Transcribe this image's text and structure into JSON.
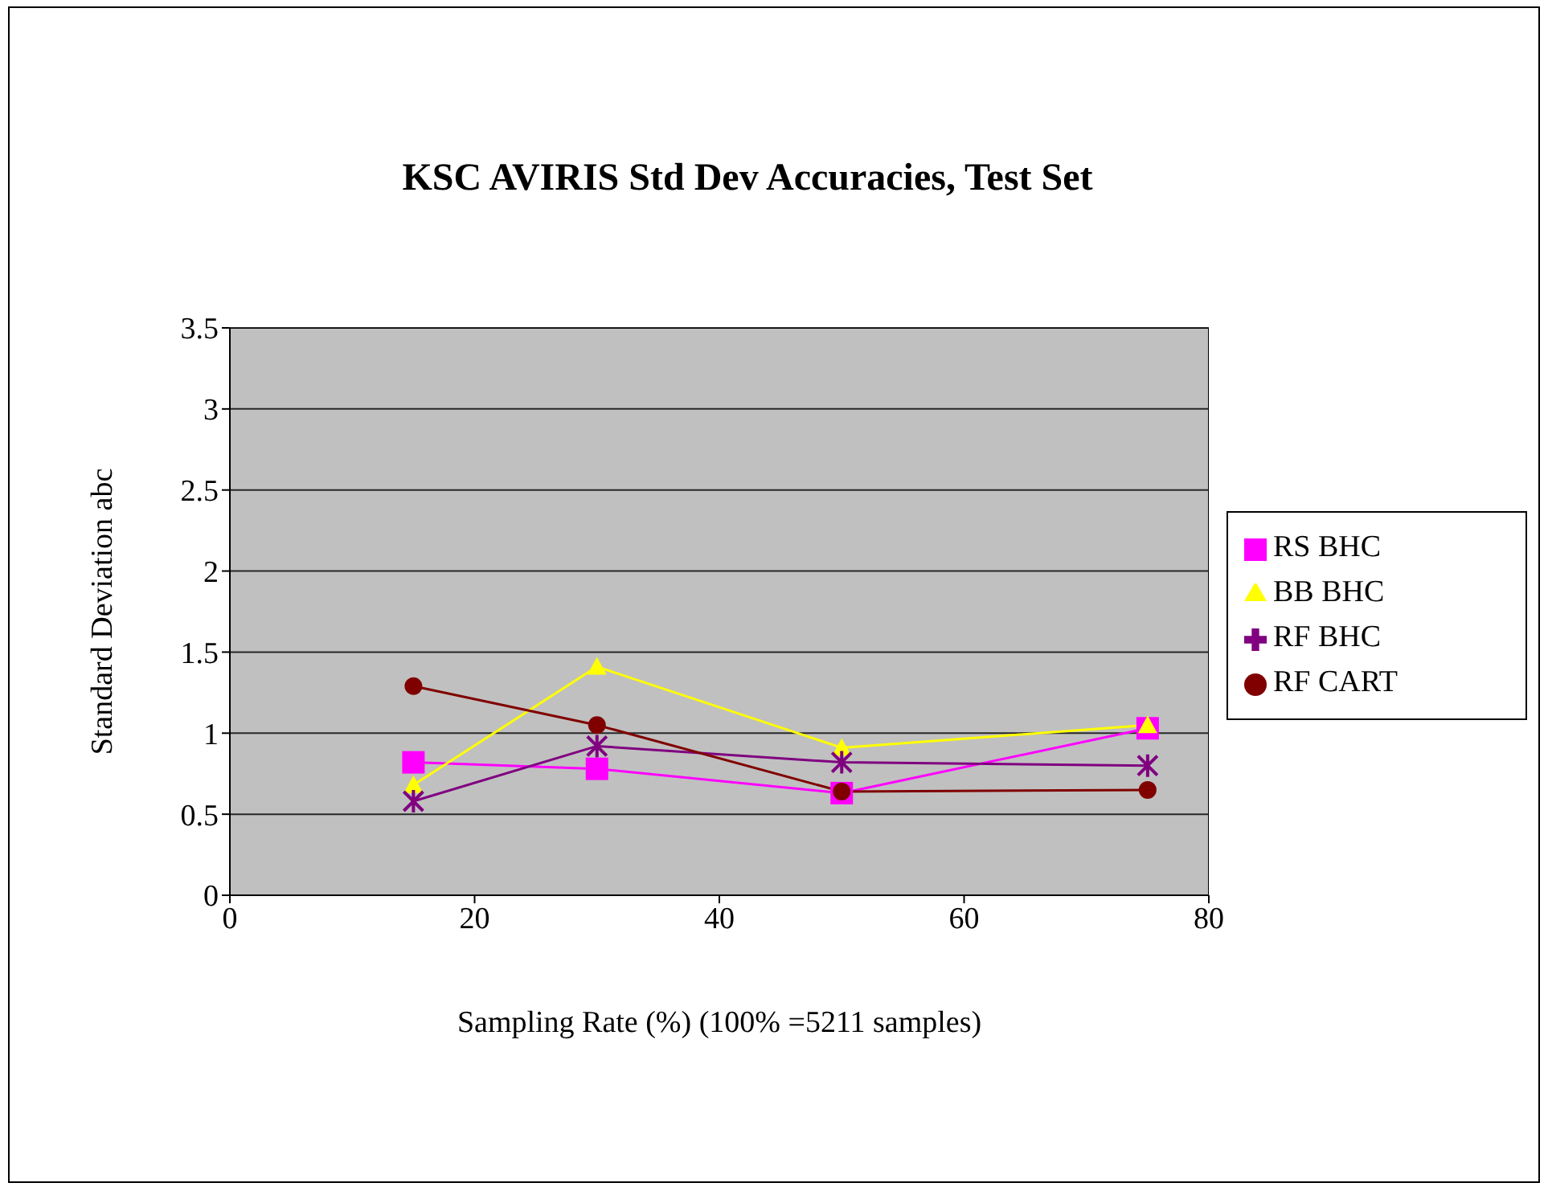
{
  "chart_data": {
    "type": "line",
    "title": "KSC AVIRIS Std Dev Accuracies, Test Set",
    "xlabel": "Sampling Rate (%) (100% =5211 samples)",
    "ylabel": "Standard Deviation abc",
    "x": [
      15,
      30,
      50,
      75
    ],
    "series": [
      {
        "name": "RS BHC",
        "color": "#ff00ff",
        "marker": "square",
        "values": [
          0.82,
          0.78,
          0.63,
          1.03
        ]
      },
      {
        "name": "BB BHC",
        "color": "#ffff00",
        "marker": "triangle",
        "values": [
          0.68,
          1.41,
          0.91,
          1.05
        ]
      },
      {
        "name": "RF BHC",
        "color": "#800080",
        "marker": "cross",
        "values": [
          0.58,
          0.92,
          0.82,
          0.8
        ]
      },
      {
        "name": "RF CART",
        "color": "#800000",
        "marker": "circle",
        "values": [
          1.29,
          1.05,
          0.64,
          0.65
        ]
      }
    ],
    "xlim": [
      0,
      80
    ],
    "xticks": [
      0,
      20,
      40,
      60,
      80
    ],
    "ylim": [
      0,
      3.5
    ],
    "yticks": [
      0,
      0.5,
      1,
      1.5,
      2,
      2.5,
      3,
      3.5
    ],
    "grid": "y",
    "legend": "right",
    "line_style": "solid"
  }
}
